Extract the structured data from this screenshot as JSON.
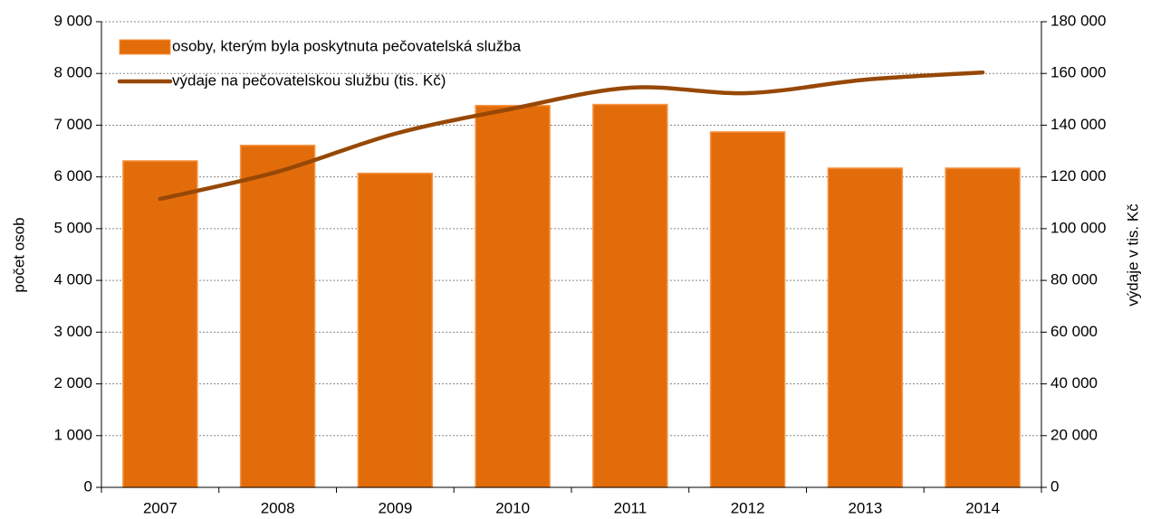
{
  "chart_data": {
    "type": "bar",
    "categories": [
      "2007",
      "2008",
      "2009",
      "2010",
      "2011",
      "2012",
      "2013",
      "2014"
    ],
    "series": [
      {
        "name": "osoby, kterým byla poskytnuta pečovatelská služba",
        "type": "bar",
        "color": "#e36c0a",
        "values": [
          6310,
          6610,
          6070,
          7380,
          7400,
          6870,
          6170,
          6170
        ]
      },
      {
        "name": "výdaje na pečovatelskou službu (tis. Kč)",
        "type": "line",
        "axis": "y2",
        "color": "#974806",
        "values": [
          111500,
          122000,
          136700,
          146400,
          154500,
          152400,
          157600,
          160400
        ]
      }
    ],
    "ylabel": "počet osob",
    "y2label": "výdaje v tis. Kč",
    "ylim": [
      0,
      9000
    ],
    "yticks": [
      0,
      {
        "value": 1000,
        "label": "1 000"
      },
      {
        "value": 2000,
        "label": "2 000"
      },
      {
        "value": 3000,
        "label": "3 000"
      },
      {
        "value": 4000,
        "label": "4 000"
      },
      {
        "value": 5000,
        "label": "5 000"
      },
      {
        "value": 6000,
        "label": "6 000"
      },
      {
        "value": 7000,
        "label": "7 000"
      },
      {
        "value": 8000,
        "label": "8 000"
      },
      {
        "value": 9000,
        "label": "9 000"
      }
    ],
    "y2lim": [
      0,
      180000
    ],
    "y2ticks": [
      0,
      {
        "value": 20000,
        "label": "20 000"
      },
      {
        "value": 40000,
        "label": "40 000"
      },
      {
        "value": 60000,
        "label": "60 000"
      },
      {
        "value": 80000,
        "label": "80 000"
      },
      {
        "value": 100000,
        "label": "100 000"
      },
      {
        "value": 120000,
        "label": "120 000"
      },
      {
        "value": 140000,
        "label": "140 000"
      },
      {
        "value": 160000,
        "label": "160 000"
      },
      {
        "value": 180000,
        "label": "180 000"
      }
    ],
    "grid": true,
    "legend": "upper left"
  }
}
